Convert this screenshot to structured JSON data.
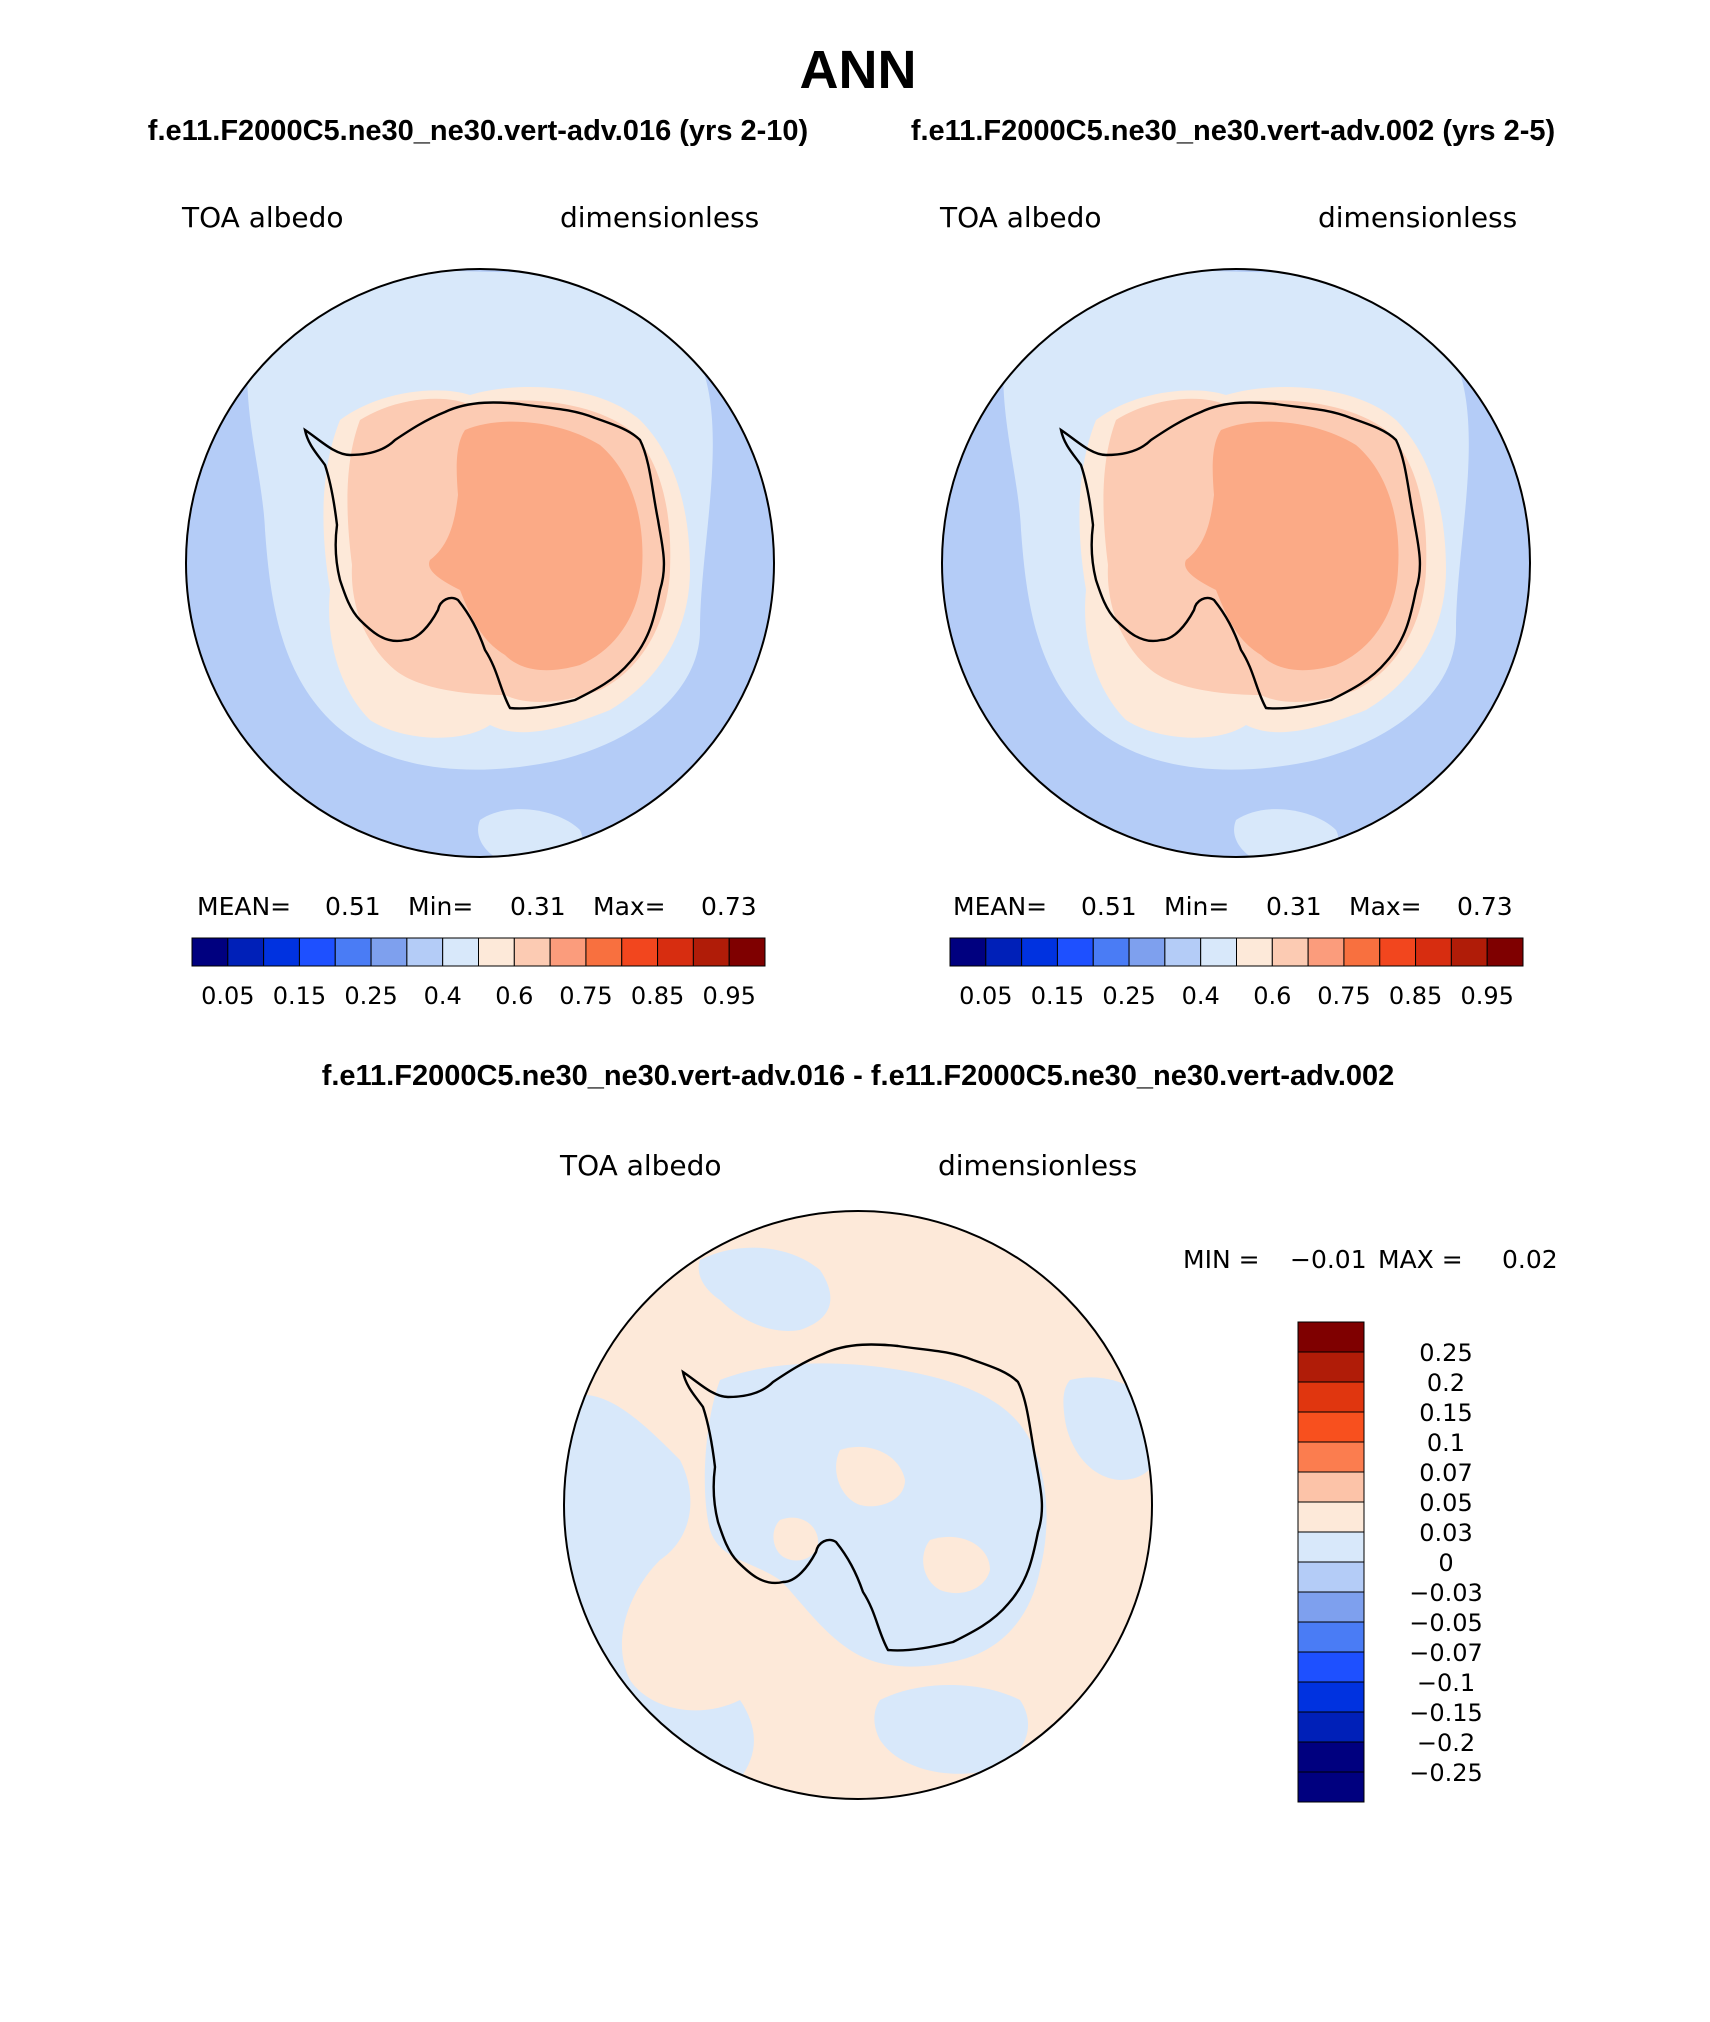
{
  "page": {
    "title": "ANN",
    "case1_label": "f.e11.F2000C5.ne30_ne30.vert-adv.016 (yrs 2-10)",
    "case2_label": "f.e11.F2000C5.ne30_ne30.vert-adv.002 (yrs 2-5)",
    "diff_label": "f.e11.F2000C5.ne30_ne30.vert-adv.016 - f.e11.F2000C5.ne30_ne30.vert-adv.002"
  },
  "panels": [
    {
      "variable": "TOA albedo",
      "units": "dimensionless",
      "stats": {
        "mean_label": "MEAN=",
        "mean": "0.51",
        "min_label": "Min=",
        "min": "0.31",
        "max_label": "Max=",
        "max": "0.73"
      }
    },
    {
      "variable": "TOA albedo",
      "units": "dimensionless",
      "stats": {
        "mean_label": "MEAN=",
        "mean": "0.51",
        "min_label": "Min=",
        "min": "0.31",
        "max_label": "Max=",
        "max": "0.73"
      }
    },
    {
      "variable": "TOA albedo",
      "units": "dimensionless",
      "stats": {
        "min_label": "MIN =",
        "min": "−0.01",
        "max_label": "MAX =",
        "max": "0.02"
      }
    }
  ],
  "colorbar_abs": {
    "colors": [
      "#00007f",
      "#0020b8",
      "#0032e0",
      "#1e50ff",
      "#4a7cf5",
      "#7ea0ee",
      "#b4ccf7",
      "#d8e8fa",
      "#fde9d9",
      "#fccbb3",
      "#fb9c7c",
      "#f8703f",
      "#f2461e",
      "#d72d10",
      "#b01c08",
      "#7f0000"
    ],
    "tick_labels": [
      "0.05",
      "0.15",
      "0.25",
      "0.4",
      "0.6",
      "0.75",
      "0.85",
      "0.95"
    ]
  },
  "colorbar_diff": {
    "colors": [
      "#7f0000",
      "#b01c08",
      "#e0360f",
      "#f8501e",
      "#fb7d4f",
      "#fcc3a8",
      "#fde9d9",
      "#d8e8fa",
      "#b4ccf7",
      "#7ea0ee",
      "#4a7cf5",
      "#1e50ff",
      "#0032e0",
      "#0020b8",
      "#00007f"
    ],
    "tick_labels": [
      "0.25",
      "0.2",
      "0.15",
      "0.1",
      "0.07",
      "0.05",
      "0.03",
      "0",
      "−0.03",
      "−0.05",
      "−0.07",
      "−0.1",
      "−0.15",
      "−0.2",
      "−0.25"
    ]
  },
  "colors": {
    "ocean_low": "#b4ccf7",
    "ocean_mid": "#d8e8fa",
    "ice_edge": "#fde9d9",
    "coast_zone": "#fccbb3",
    "interior": "#fbaa86",
    "diff_pos": "#fde9d9",
    "diff_neg": "#d8e8fa"
  }
}
